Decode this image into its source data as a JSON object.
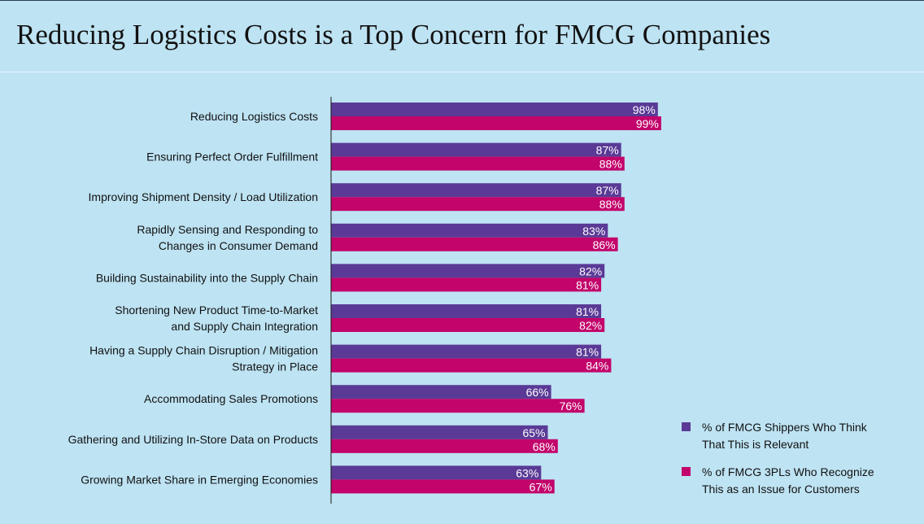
{
  "chart_data": {
    "type": "bar",
    "orientation": "horizontal",
    "title": "Reducing Logistics Costs is a Top Concern for FMCG Companies",
    "value_suffix": "%",
    "xlim": [
      0,
      100
    ],
    "categories": [
      [
        "Reducing Logistics Costs"
      ],
      [
        "Ensuring Perfect Order Fulfillment"
      ],
      [
        "Improving Shipment Density / Load Utilization"
      ],
      [
        "Rapidly Sensing and Responding to",
        "Changes in Consumer Demand"
      ],
      [
        "Building Sustainability into the Supply Chain"
      ],
      [
        "Shortening New Product Time-to-Market",
        "and Supply Chain Integration"
      ],
      [
        "Having a Supply Chain Disruption / Mitigation",
        "Strategy in Place"
      ],
      [
        "Accommodating Sales Promotions"
      ],
      [
        "Gathering and Utilizing In-Store Data on Products"
      ],
      [
        "Growing Market Share in Emerging Economies"
      ]
    ],
    "series": [
      {
        "name": [
          "% of FMCG Shippers Who Think",
          "That This is Relevant"
        ],
        "color": "#5a3a96",
        "values": [
          98,
          87,
          87,
          83,
          82,
          81,
          81,
          66,
          65,
          63
        ]
      },
      {
        "name": [
          "% of FMCG 3PLs Who Recognize",
          "This as an Issue for Customers"
        ],
        "color": "#c2046b",
        "values": [
          99,
          88,
          88,
          86,
          81,
          82,
          84,
          76,
          68,
          67
        ]
      }
    ],
    "legend_position": "bottom-right"
  }
}
